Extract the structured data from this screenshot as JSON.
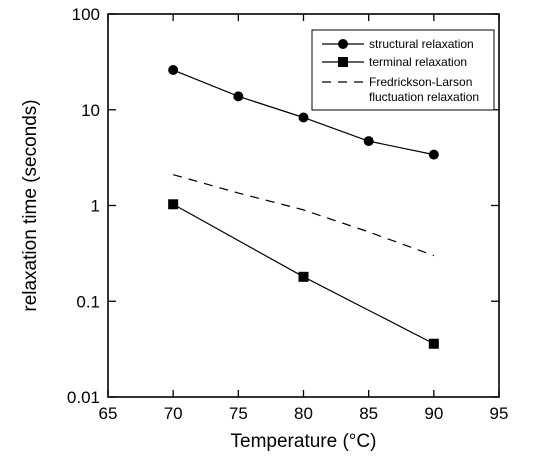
{
  "chart_data": {
    "type": "line",
    "xlabel": "Temperature (°C)",
    "ylabel": "relaxation time (seconds)",
    "xlim": [
      65,
      95
    ],
    "ylim": [
      0.01,
      100
    ],
    "yscale": "log",
    "grid": false,
    "legend_position": "top-right",
    "x_ticks": [
      65,
      70,
      75,
      80,
      85,
      90,
      95
    ],
    "x_tick_labels": [
      "65",
      "70",
      "75",
      "80",
      "85",
      "90",
      "95"
    ],
    "y_ticks": [
      0.01,
      0.1,
      1,
      10,
      100
    ],
    "y_tick_labels": [
      "0.01",
      "0.1",
      "1",
      "10",
      "100"
    ],
    "series": [
      {
        "name": "structural relaxation",
        "marker": "circle",
        "line": "solid",
        "x": [
          70,
          75,
          80,
          85,
          90
        ],
        "y": [
          26,
          13.8,
          8.3,
          4.7,
          3.4
        ]
      },
      {
        "name": "terminal relaxation",
        "marker": "square",
        "line": "solid",
        "x": [
          70,
          80,
          90
        ],
        "y": [
          1.03,
          0.18,
          0.036
        ]
      },
      {
        "name": "Fredrickson-Larson\nfluctuation relaxation",
        "name_lines": [
          "Fredrickson-Larson",
          "fluctuation relaxation"
        ],
        "marker": "none",
        "line": "dashed",
        "x": [
          70,
          75,
          80,
          85,
          90
        ],
        "y": [
          2.1,
          1.35,
          0.9,
          0.53,
          0.3
        ]
      }
    ]
  }
}
